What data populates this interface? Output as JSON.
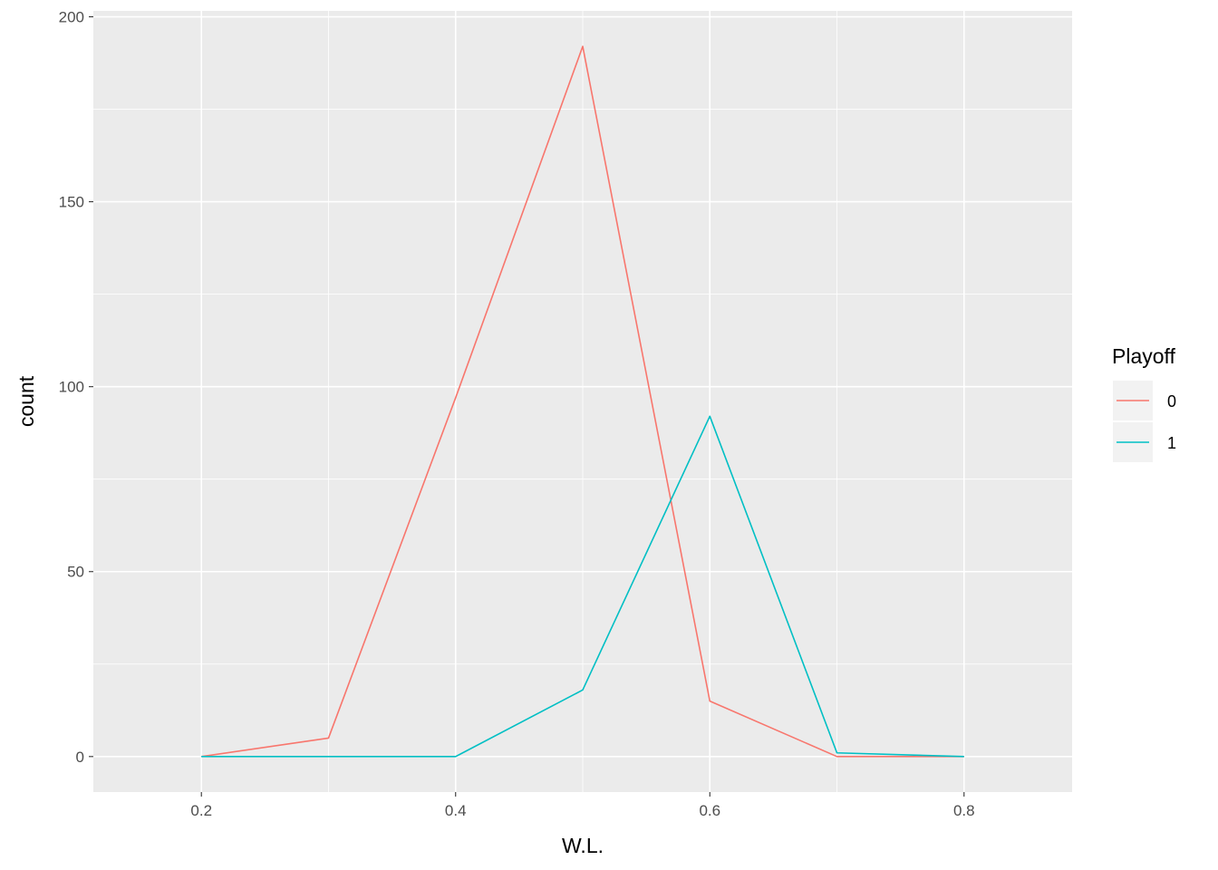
{
  "chart_data": {
    "type": "line",
    "xlabel": "W.L.",
    "ylabel": "count",
    "xlim": [
      0.115,
      0.885
    ],
    "ylim": [
      -9.6,
      201.6
    ],
    "x_ticks": [
      0.2,
      0.4,
      0.6,
      0.8
    ],
    "x_tick_labels": [
      "0.2",
      "0.4",
      "0.6",
      "0.8"
    ],
    "y_ticks": [
      0,
      50,
      100,
      150,
      200
    ],
    "y_tick_labels": [
      "0",
      "50",
      "100",
      "150",
      "200"
    ],
    "x_minor_ticks": [
      0.3,
      0.5,
      0.7
    ],
    "y_minor_ticks": [
      25,
      75,
      125,
      175
    ],
    "grid": true,
    "legend": {
      "title": "Playoff",
      "position": "right"
    },
    "series": [
      {
        "name": "0",
        "color": "#F8766D",
        "x": [
          0.2,
          0.3,
          0.4,
          0.5,
          0.6,
          0.7,
          0.8
        ],
        "y": [
          0,
          5,
          97,
          192,
          15,
          0,
          0
        ]
      },
      {
        "name": "1",
        "color": "#00BFC4",
        "x": [
          0.2,
          0.3,
          0.4,
          0.5,
          0.6,
          0.7,
          0.8
        ],
        "y": [
          0,
          0,
          0,
          18,
          92,
          1,
          0
        ]
      }
    ]
  }
}
